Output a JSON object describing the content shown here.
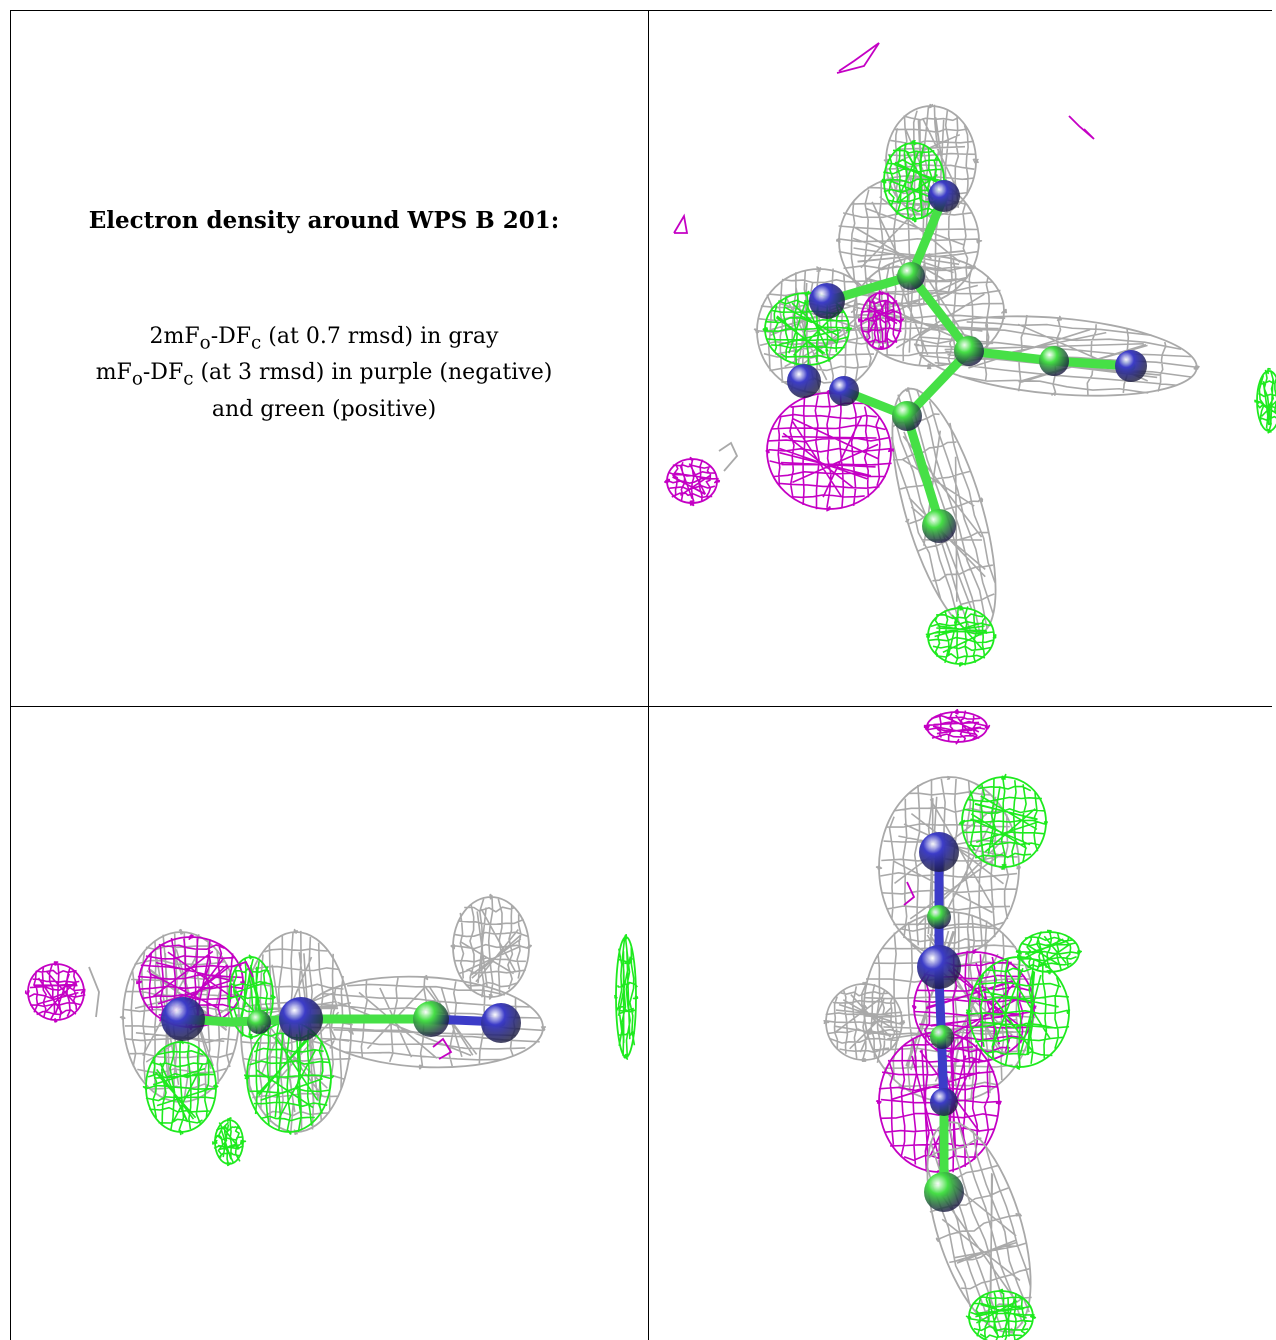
{
  "caption": {
    "title": "Electron density around WPS B 201:",
    "line1_parts": [
      "2mF",
      "o",
      "-DF",
      "c",
      " (at 0.7 rmsd) in gray"
    ],
    "line2_parts": [
      "mF",
      "o",
      "-DF",
      "c",
      " (at 3 rmsd) in purple (negative)"
    ],
    "line3": "and green (positive)"
  },
  "colors": {
    "map_2fofc": "#a9a9a9",
    "map_negative": "#c400c4",
    "map_positive": "#1eea1e",
    "atom_carbon": "#46e046",
    "atom_nitrogen": "#3c3cc8",
    "bond": "#46e046"
  },
  "panels": [
    {
      "name": "view-top-right"
    },
    {
      "name": "view-bottom-left"
    },
    {
      "name": "view-bottom-right"
    }
  ]
}
